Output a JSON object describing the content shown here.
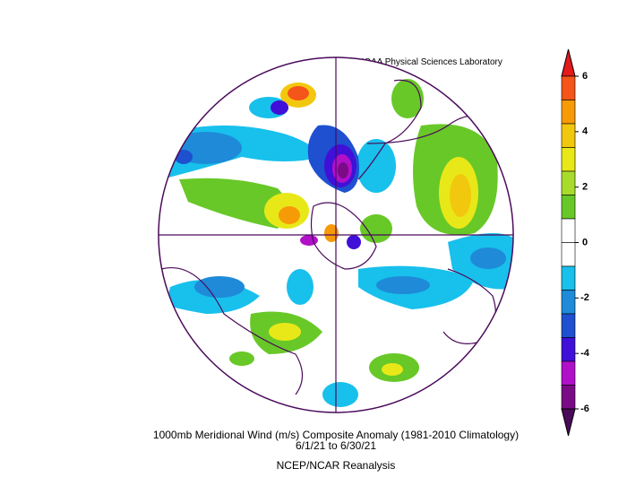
{
  "credit": "NOAA Physical Sciences Laboratory",
  "title": "1000mb Meridional Wind (m/s) Composite Anomaly (1981-2010 Climatology)",
  "dates": "6/1/21  to 6/30/21",
  "source": "NCEP/NCAR Reanalysis",
  "colorbar": {
    "range": [
      -6,
      6
    ],
    "ticks": [
      6,
      4,
      2,
      0,
      -2,
      -4,
      -6
    ],
    "colors": [
      "#e41a1c",
      "#f5541a",
      "#f79a08",
      "#f2c80e",
      "#e8e818",
      "#a8dc2c",
      "#68c828",
      "#ffffff",
      "#ffffff",
      "#18c0ec",
      "#1e8ad8",
      "#1e50d0",
      "#4010d8",
      "#b010c8",
      "#7a0a86",
      "#4a0a5a"
    ]
  }
}
